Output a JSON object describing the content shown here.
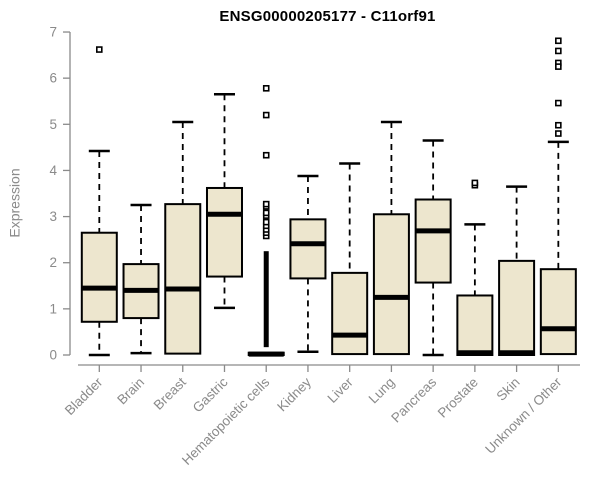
{
  "colors": {
    "box_fill": "#EDE6CE",
    "box_stroke": "#000000",
    "median": "#000000",
    "axis": "#8a8a8a",
    "title_text": "#000000",
    "outlier_fill": "#ffffff"
  },
  "chart_data": {
    "type": "boxplot",
    "title": "ENSG00000205177 - C11orf91",
    "xlabel": "",
    "ylabel": "Expression",
    "ylim": [
      0,
      7
    ],
    "y_ticks": [
      0,
      1,
      2,
      3,
      4,
      5,
      6,
      7
    ],
    "grid": false,
    "categories": [
      "Bladder",
      "Brain",
      "Breast",
      "Gastric",
      "Hematopoietic cells",
      "Kidney",
      "Liver",
      "Lung",
      "Pancreas",
      "Prostate",
      "Skin",
      "Unknown / Other"
    ],
    "boxes": [
      {
        "category": "Bladder",
        "whisker_low": 0.0,
        "q1": 0.72,
        "median": 1.45,
        "q3": 2.65,
        "whisker_high": 4.42,
        "outliers": [
          6.62
        ]
      },
      {
        "category": "Brain",
        "whisker_low": 0.04,
        "q1": 0.8,
        "median": 1.4,
        "q3": 1.97,
        "whisker_high": 3.25,
        "outliers": []
      },
      {
        "category": "Breast",
        "whisker_low": 0.03,
        "q1": 0.03,
        "median": 1.43,
        "q3": 3.27,
        "whisker_high": 5.05,
        "outliers": []
      },
      {
        "category": "Gastric",
        "whisker_low": 1.02,
        "q1": 1.7,
        "median": 3.05,
        "q3": 3.62,
        "whisker_high": 5.65,
        "outliers": []
      },
      {
        "category": "Hematopoietic cells",
        "whisker_low": 0.0,
        "q1": 0.0,
        "median": 0.02,
        "q3": 0.05,
        "whisker_high": 0.05,
        "outlier_dense_range": [
          0.17,
          2.25
        ],
        "outliers": [
          2.58,
          2.65,
          2.72,
          2.8,
          2.88,
          3.02,
          3.08,
          3.22,
          3.27,
          4.33,
          5.2,
          5.78
        ]
      },
      {
        "category": "Kidney",
        "whisker_low": 0.07,
        "q1": 1.66,
        "median": 2.41,
        "q3": 2.94,
        "whisker_high": 3.88,
        "outliers": []
      },
      {
        "category": "Liver",
        "whisker_low": 0.02,
        "q1": 0.02,
        "median": 0.43,
        "q3": 1.78,
        "whisker_high": 4.15,
        "outliers": []
      },
      {
        "category": "Lung",
        "whisker_low": 0.02,
        "q1": 0.02,
        "median": 1.25,
        "q3": 3.05,
        "whisker_high": 5.05,
        "outliers": []
      },
      {
        "category": "Pancreas",
        "whisker_low": 0.0,
        "q1": 1.57,
        "median": 2.69,
        "q3": 3.37,
        "whisker_high": 4.65,
        "outliers": []
      },
      {
        "category": "Prostate",
        "whisker_low": 0.0,
        "q1": 0.0,
        "median": 0.05,
        "q3": 1.29,
        "whisker_high": 2.83,
        "outliers": [
          3.68,
          3.73
        ]
      },
      {
        "category": "Skin",
        "whisker_low": 0.0,
        "q1": 0.0,
        "median": 0.05,
        "q3": 2.04,
        "whisker_high": 3.65,
        "outliers": []
      },
      {
        "category": "Unknown / Other",
        "whisker_low": 0.02,
        "q1": 0.02,
        "median": 0.57,
        "q3": 1.86,
        "whisker_high": 4.62,
        "outliers": [
          6.81,
          6.59,
          6.33,
          6.25,
          5.46,
          4.98,
          4.8
        ]
      }
    ]
  }
}
